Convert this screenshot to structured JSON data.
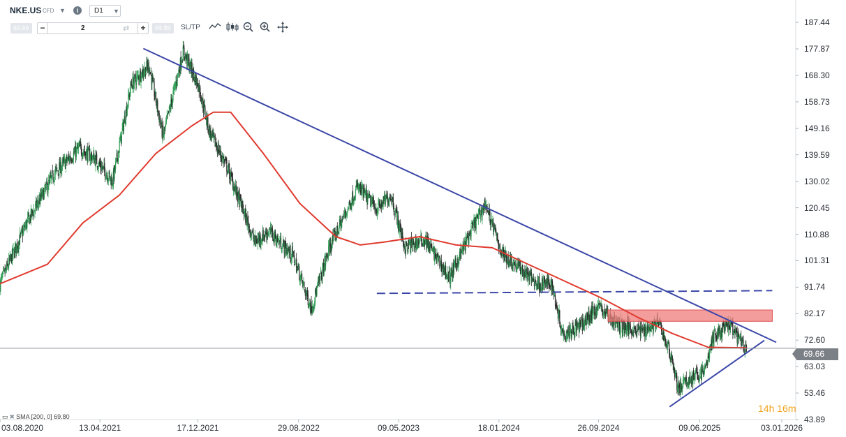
{
  "header": {
    "symbol": "NKE.US",
    "symbol_type": "CFD",
    "timeframe": "D1",
    "bid": "69.66",
    "ask": "69.89",
    "quantity": "2",
    "sltp_label": "SL/TP",
    "minus": "−",
    "plus": "+",
    "info": "i"
  },
  "countdown": {
    "hours": "14",
    "hours_unit": "h",
    "minutes": "16",
    "minutes_unit": "m"
  },
  "indicator_legend": "SMA [200, 0] 69.80",
  "current_price": "69.66",
  "colors": {
    "bull": "#2e9e55",
    "bear": "#2b2b2b",
    "sma": "#e03a2e",
    "trendline": "#3b47a8",
    "zone": "#f07c7c",
    "price_line": "#8a8f96",
    "countdown": "#f0a21a"
  },
  "chart_data": {
    "type": "candlestick",
    "y_axis": {
      "ticks": [
        "187.44",
        "177.87",
        "168.30",
        "158.73",
        "149.16",
        "139.59",
        "130.02",
        "120.45",
        "110.88",
        "101.31",
        "91.74",
        "82.17",
        "72.60",
        "63.03",
        "53.46",
        "43.89"
      ],
      "range": [
        43.89,
        190.5
      ],
      "position": "right"
    },
    "x_axis": {
      "ticks": [
        "03.08.2020",
        "13.04.2021",
        "17.12.2021",
        "29.08.2022",
        "09.05.2023",
        "18.01.2024",
        "26.09.2024",
        "09.06.2025",
        "03.01.2026"
      ],
      "range": [
        "2020-08-03",
        "2026-01-03"
      ]
    },
    "price_path": [
      [
        "2020-08-03",
        93
      ],
      [
        "2020-10-10",
        115
      ],
      [
        "2020-12-20",
        133
      ],
      [
        "2021-02-20",
        142
      ],
      [
        "2021-04-01",
        138
      ],
      [
        "2021-05-15",
        130
      ],
      [
        "2021-07-01",
        165
      ],
      [
        "2021-08-15",
        172
      ],
      [
        "2021-09-20",
        146
      ],
      [
        "2021-11-10",
        177
      ],
      [
        "2021-12-20",
        164
      ],
      [
        "2022-01-15",
        148
      ],
      [
        "2022-03-01",
        135
      ],
      [
        "2022-05-10",
        108
      ],
      [
        "2022-06-15",
        112
      ],
      [
        "2022-08-15",
        103
      ],
      [
        "2022-09-30",
        84
      ],
      [
        "2022-11-15",
        106
      ],
      [
        "2023-01-25",
        128
      ],
      [
        "2023-03-15",
        120
      ],
      [
        "2023-04-20",
        125
      ],
      [
        "2023-05-25",
        106
      ],
      [
        "2023-07-15",
        109
      ],
      [
        "2023-09-15",
        95
      ],
      [
        "2023-11-15",
        114
      ],
      [
        "2023-12-15",
        122
      ],
      [
        "2024-01-25",
        104
      ],
      [
        "2024-03-15",
        98
      ],
      [
        "2024-04-25",
        93
      ],
      [
        "2024-05-30",
        93
      ],
      [
        "2024-06-28",
        75
      ],
      [
        "2024-08-15",
        78
      ],
      [
        "2024-09-26",
        85
      ],
      [
        "2024-11-15",
        78
      ],
      [
        "2025-01-15",
        76
      ],
      [
        "2025-02-25",
        79
      ],
      [
        "2025-03-31",
        66
      ],
      [
        "2025-04-15",
        55
      ],
      [
        "2025-05-20",
        59
      ],
      [
        "2025-06-20",
        61
      ],
      [
        "2025-07-15",
        74
      ],
      [
        "2025-08-25",
        78
      ],
      [
        "2025-09-25",
        71
      ],
      [
        "2025-10-06",
        69.66
      ]
    ],
    "series": [
      {
        "name": "SMA [200, 0]",
        "type": "line",
        "points": [
          [
            "2020-08-03",
            93
          ],
          [
            "2020-12-01",
            100
          ],
          [
            "2021-03-01",
            115
          ],
          [
            "2021-06-01",
            125
          ],
          [
            "2021-09-01",
            140
          ],
          [
            "2021-12-01",
            150
          ],
          [
            "2022-01-25",
            155
          ],
          [
            "2022-03-10",
            155
          ],
          [
            "2022-06-01",
            140
          ],
          [
            "2022-09-01",
            122
          ],
          [
            "2022-12-01",
            110
          ],
          [
            "2023-02-01",
            107
          ],
          [
            "2023-04-01",
            108
          ],
          [
            "2023-07-01",
            110
          ],
          [
            "2023-10-01",
            107
          ],
          [
            "2024-01-01",
            106
          ],
          [
            "2024-04-01",
            100
          ],
          [
            "2024-07-01",
            94
          ],
          [
            "2024-10-01",
            88
          ],
          [
            "2025-01-01",
            81
          ],
          [
            "2025-04-01",
            75
          ],
          [
            "2025-07-01",
            70
          ],
          [
            "2025-10-06",
            69.8
          ]
        ]
      },
      {
        "name": "",
        "type": "trendline",
        "style": "solid",
        "points": [
          [
            "2021-08-01",
            178
          ],
          [
            "2025-12-20",
            71.8
          ]
        ]
      },
      {
        "name": "",
        "type": "trendline",
        "style": "dashed",
        "points": [
          [
            "2023-03-15",
            89.5
          ],
          [
            "2025-12-10",
            90.5
          ]
        ]
      },
      {
        "name": "",
        "type": "trendline",
        "style": "solid",
        "points": [
          [
            "2025-03-25",
            48.5
          ],
          [
            "2025-11-20",
            72.5
          ]
        ]
      }
    ],
    "zones": [
      {
        "from": [
          "2024-10-20",
          83.5
        ],
        "to": [
          "2025-12-10",
          79.4
        ]
      }
    ],
    "last_price": 69.66,
    "grid": false,
    "legend": "bottom-left"
  }
}
